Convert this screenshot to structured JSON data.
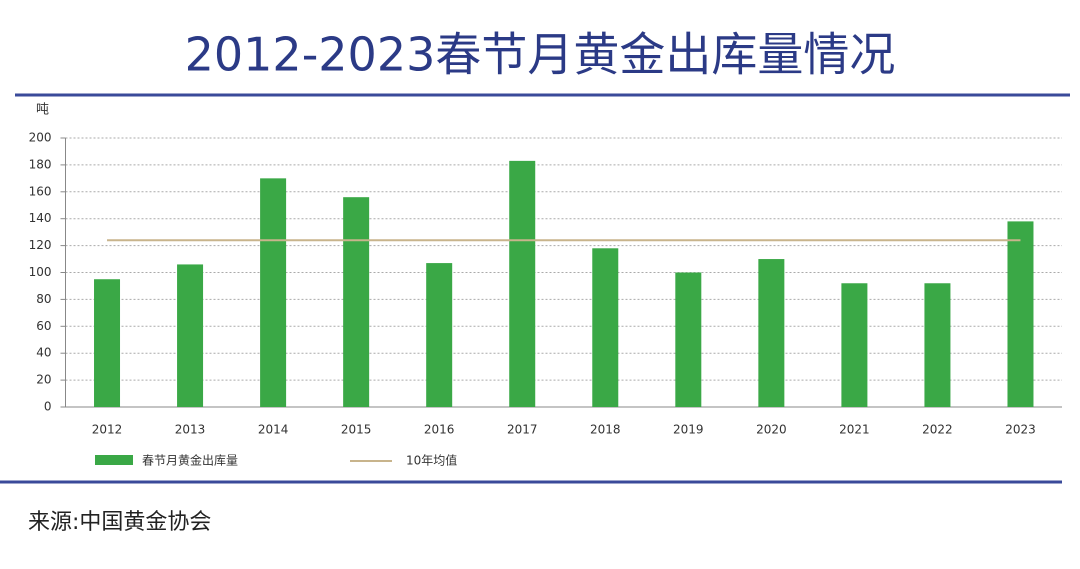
{
  "chart_data": {
    "type": "bar",
    "title": "2012-2023春节月黄金出库量情况",
    "y_label": "吨",
    "categories": [
      "2012",
      "2013",
      "2014",
      "2015",
      "2016",
      "2017",
      "2018",
      "2019",
      "2020",
      "2021",
      "2022",
      "2023"
    ],
    "series": [
      {
        "name": "春节月黄金出库量",
        "color": "#3aa846",
        "values": [
          95,
          106,
          170,
          156,
          107,
          183,
          118,
          100,
          110,
          92,
          92,
          138
        ]
      }
    ],
    "reference_line": {
      "name": "10年均值",
      "value": 124,
      "color": "#c8b48c"
    },
    "ylim": [
      0,
      200
    ],
    "yticks": [
      0,
      20,
      40,
      60,
      80,
      100,
      120,
      140,
      160,
      180,
      200
    ],
    "grid": true,
    "source": "来源:中国黄金协会"
  }
}
